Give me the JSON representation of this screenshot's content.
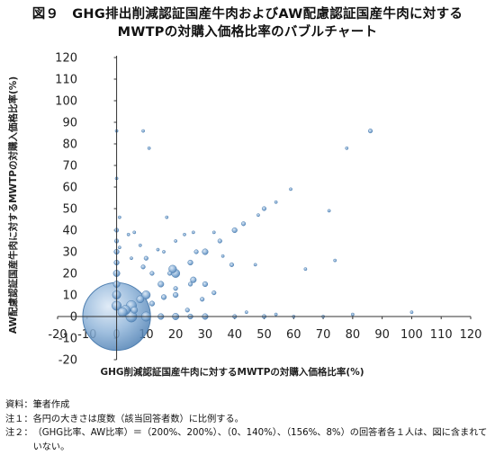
{
  "title_line1": "図９　GHG排出削減認証国産牛肉およびAW配慮認証国産牛肉に対する",
  "title_line2": "MWTPの対購入価格比率のバブルチャート",
  "notes": [
    {
      "label": "資料：",
      "text": "筆者作成"
    },
    {
      "label": "注１：",
      "text": "各円の大きさは度数（該当回答者数）に比例する。"
    },
    {
      "label": "注２：",
      "text": "（GHG比率、AW比率）＝（200%、200%）、（0、140%）、（156%、8%）の回答者各１人は、図に含まれていない。"
    }
  ],
  "chart_data": {
    "type": "scatter",
    "subtype": "bubble",
    "xlabel": "GHG削減認証国産牛肉に対するMWTPの対購入価格比率(%)",
    "ylabel": "AW配慮認証国産牛肉に対するMWTPの対購入価格比率(%)",
    "xlim": [
      -20,
      120
    ],
    "ylim": [
      -20,
      120
    ],
    "x_ticks": [
      -20,
      -10,
      0,
      10,
      20,
      30,
      40,
      50,
      60,
      70,
      80,
      90,
      100,
      110,
      120
    ],
    "y_ticks": [
      -20,
      -10,
      0,
      10,
      20,
      30,
      40,
      50,
      60,
      70,
      80,
      90,
      100,
      110,
      120
    ],
    "grid": false,
    "bubble_color": "#8fb4d9",
    "bubble_stroke": "#4f7fb0",
    "points": [
      {
        "x": 0,
        "y": 0,
        "size": 520
      },
      {
        "x": 0,
        "y": 86,
        "size": 1
      },
      {
        "x": 0,
        "y": 64,
        "size": 1
      },
      {
        "x": 0,
        "y": 40,
        "size": 2
      },
      {
        "x": 0,
        "y": 35,
        "size": 2
      },
      {
        "x": 0,
        "y": 30,
        "size": 3
      },
      {
        "x": 0,
        "y": 25,
        "size": 3
      },
      {
        "x": 0,
        "y": 20,
        "size": 5
      },
      {
        "x": 0,
        "y": 15,
        "size": 5
      },
      {
        "x": 0,
        "y": 10,
        "size": 8
      },
      {
        "x": 0,
        "y": 5,
        "size": 10
      },
      {
        "x": 1,
        "y": 46,
        "size": 1
      },
      {
        "x": 3,
        "y": 3,
        "size": 10
      },
      {
        "x": 5,
        "y": 0,
        "size": 14
      },
      {
        "x": 5,
        "y": 5,
        "size": 12
      },
      {
        "x": 10,
        "y": 0,
        "size": 10
      },
      {
        "x": 10,
        "y": 10,
        "size": 8
      },
      {
        "x": 2,
        "y": 2,
        "size": 10
      },
      {
        "x": 8,
        "y": 8,
        "size": 6
      },
      {
        "x": 6,
        "y": 3,
        "size": 5
      },
      {
        "x": 12,
        "y": 6,
        "size": 3
      },
      {
        "x": 15,
        "y": 0,
        "size": 4
      },
      {
        "x": 15,
        "y": 15,
        "size": 4
      },
      {
        "x": 20,
        "y": 0,
        "size": 5
      },
      {
        "x": 20,
        "y": 20,
        "size": 8
      },
      {
        "x": 25,
        "y": 0,
        "size": 3
      },
      {
        "x": 30,
        "y": 0,
        "size": 4
      },
      {
        "x": 30,
        "y": 30,
        "size": 4
      },
      {
        "x": 35,
        "y": 35,
        "size": 2
      },
      {
        "x": 40,
        "y": 0,
        "size": 2
      },
      {
        "x": 40,
        "y": 40,
        "size": 3
      },
      {
        "x": 50,
        "y": 0,
        "size": 2
      },
      {
        "x": 50,
        "y": 50,
        "size": 2
      },
      {
        "x": 60,
        "y": 0,
        "size": 1
      },
      {
        "x": 70,
        "y": 0,
        "size": 1
      },
      {
        "x": 100,
        "y": 2,
        "size": 1
      },
      {
        "x": 9,
        "y": 86,
        "size": 1
      },
      {
        "x": 11,
        "y": 78,
        "size": 1
      },
      {
        "x": 86,
        "y": 86,
        "size": 2
      },
      {
        "x": 78,
        "y": 78,
        "size": 1
      },
      {
        "x": 59,
        "y": 59,
        "size": 1
      },
      {
        "x": 54,
        "y": 53,
        "size": 1
      },
      {
        "x": 72,
        "y": 49,
        "size": 1
      },
      {
        "x": 64,
        "y": 22,
        "size": 1
      },
      {
        "x": 74,
        "y": 26,
        "size": 1
      },
      {
        "x": 43,
        "y": 43,
        "size": 2
      },
      {
        "x": 48,
        "y": 47,
        "size": 1
      },
      {
        "x": 17,
        "y": 46,
        "size": 1
      },
      {
        "x": 6,
        "y": 39,
        "size": 1
      },
      {
        "x": 4,
        "y": 38,
        "size": 1
      },
      {
        "x": 8,
        "y": 33,
        "size": 1
      },
      {
        "x": 26,
        "y": 39,
        "size": 1
      },
      {
        "x": 23,
        "y": 38,
        "size": 1
      },
      {
        "x": 33,
        "y": 39,
        "size": 1
      },
      {
        "x": 27,
        "y": 30,
        "size": 2
      },
      {
        "x": 20,
        "y": 35,
        "size": 1
      },
      {
        "x": 36,
        "y": 28,
        "size": 1
      },
      {
        "x": 47,
        "y": 24,
        "size": 1
      },
      {
        "x": 39,
        "y": 24,
        "size": 2
      },
      {
        "x": 14,
        "y": 31,
        "size": 1
      },
      {
        "x": 10,
        "y": 27,
        "size": 2
      },
      {
        "x": 18,
        "y": 20,
        "size": 2
      },
      {
        "x": 12,
        "y": 20,
        "size": 2
      },
      {
        "x": 5,
        "y": 27,
        "size": 1
      },
      {
        "x": 9,
        "y": 23,
        "size": 2
      },
      {
        "x": 20,
        "y": 10,
        "size": 3
      },
      {
        "x": 25,
        "y": 15,
        "size": 2
      },
      {
        "x": 16,
        "y": 9,
        "size": 3
      },
      {
        "x": 19,
        "y": 22,
        "size": 7
      },
      {
        "x": 26,
        "y": 17,
        "size": 4
      },
      {
        "x": 20,
        "y": 13,
        "size": 2
      },
      {
        "x": 25,
        "y": 25,
        "size": 3
      },
      {
        "x": 29,
        "y": 8,
        "size": 2
      },
      {
        "x": 33,
        "y": 11,
        "size": 2
      },
      {
        "x": 30,
        "y": 15,
        "size": 3
      },
      {
        "x": 16,
        "y": 30,
        "size": 1
      },
      {
        "x": 1,
        "y": 32,
        "size": 1
      },
      {
        "x": 24,
        "y": 3,
        "size": 2
      },
      {
        "x": 44,
        "y": 2,
        "size": 1
      },
      {
        "x": 54,
        "y": 1,
        "size": 1
      },
      {
        "x": 80,
        "y": 1,
        "size": 1
      }
    ]
  }
}
